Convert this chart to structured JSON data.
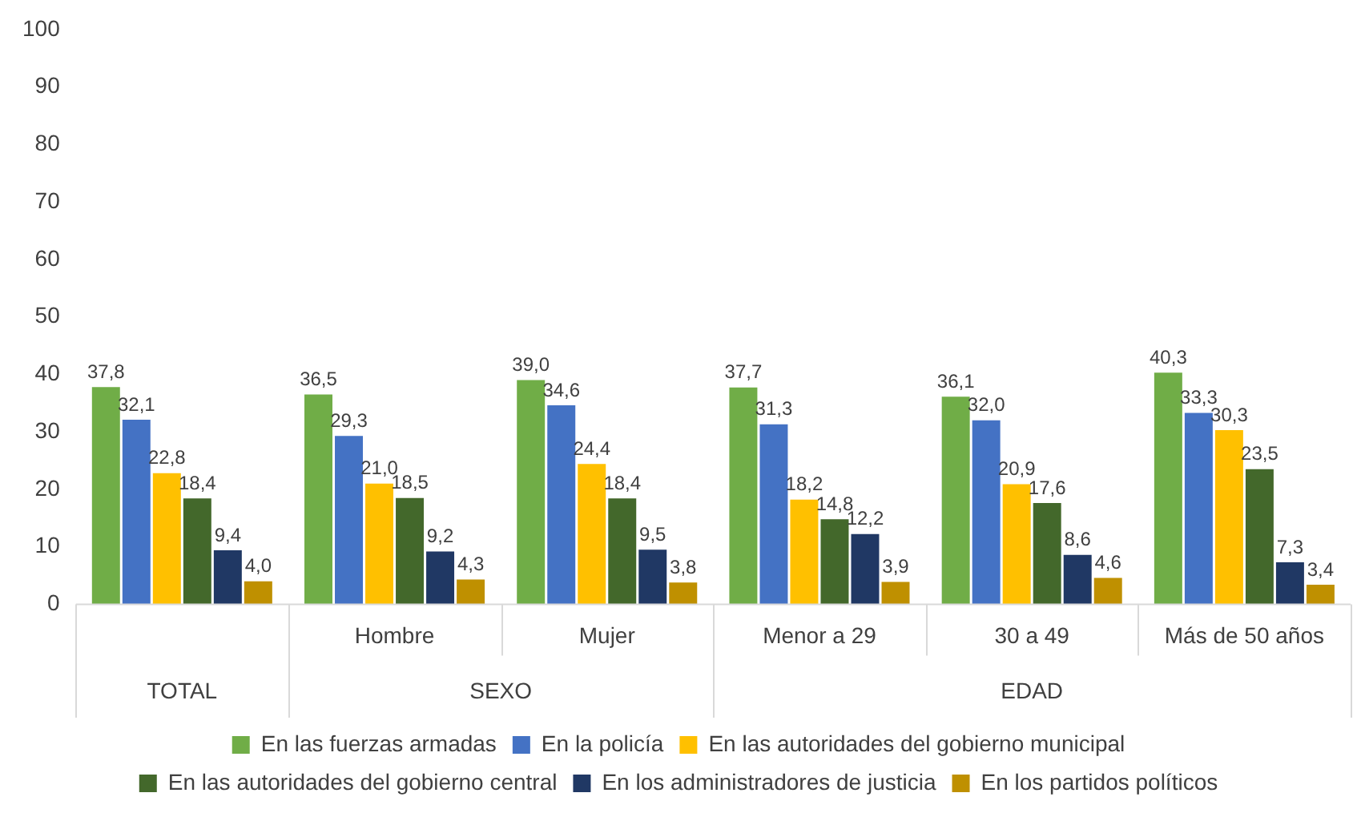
{
  "chart_data": {
    "type": "bar",
    "categories": [
      null,
      "Hombre",
      "Mujer",
      "Menor a 29",
      "30 a 49",
      "Más de 50 años"
    ],
    "annotations": [
      "TOTAL",
      "SEXO",
      "EDAD"
    ],
    "series": [
      {
        "name": "En las fuerzas armadas",
        "color": "#70ad47",
        "values": [
          37.8,
          36.5,
          39.0,
          37.7,
          36.1,
          40.3
        ],
        "value_labels": [
          "37,8",
          "36,5",
          "39,0",
          "37,7",
          "36,1",
          "40,3"
        ]
      },
      {
        "name": "En la policía",
        "color": "#4472c4",
        "values": [
          32.1,
          29.3,
          34.6,
          31.3,
          32.0,
          33.3
        ],
        "value_labels": [
          "32,1",
          "29,3",
          "34,6",
          "31,3",
          "32,0",
          "33,3"
        ]
      },
      {
        "name": "En las autoridades del gobierno municipal",
        "color": "#ffc000",
        "values": [
          22.8,
          21.0,
          24.4,
          18.2,
          20.9,
          30.3
        ],
        "value_labels": [
          "22,8",
          "21,0",
          "24,4",
          "18,2",
          "20,9",
          "30,3"
        ]
      },
      {
        "name": "En las autoridades del gobierno central",
        "color": "#43682b",
        "values": [
          18.4,
          18.5,
          18.4,
          14.8,
          17.6,
          23.5
        ],
        "value_labels": [
          "18,4",
          "18,5",
          "18,4",
          "14,8",
          "17,6",
          "23,5"
        ]
      },
      {
        "name": "En los administradores de justicia",
        "color": "#203864",
        "values": [
          9.4,
          9.2,
          9.5,
          12.2,
          8.6,
          7.3
        ],
        "value_labels": [
          "9,4",
          "9,2",
          "9,5",
          "12,2",
          "8,6",
          "7,3"
        ]
      },
      {
        "name": "En los partidos políticos",
        "color": "#bf9000",
        "values": [
          4.0,
          4.3,
          3.8,
          3.9,
          4.6,
          3.4
        ],
        "value_labels": [
          "4,0",
          "4,3",
          "3,8",
          "3,9",
          "4,6",
          "3,4"
        ]
      }
    ],
    "ylim": [
      0,
      100
    ],
    "yticks": [
      0,
      10,
      20,
      30,
      40,
      50,
      60,
      70,
      80,
      90,
      100
    ],
    "grid": false,
    "legend": "bottom"
  }
}
